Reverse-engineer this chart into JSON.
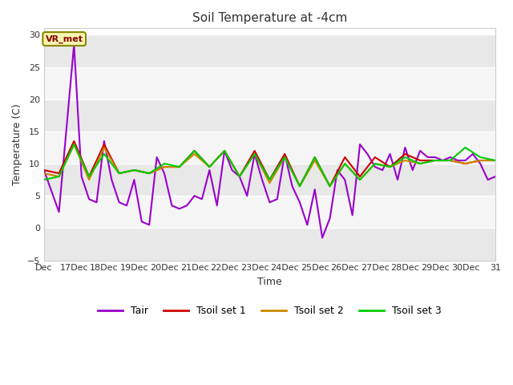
{
  "title": "Soil Temperature at -4cm",
  "xlabel": "Time",
  "ylabel": "Temperature (C)",
  "ylim": [
    -5,
    31
  ],
  "yticks": [
    -5,
    0,
    5,
    10,
    15,
    20,
    25,
    30
  ],
  "bg_color": "#ffffff",
  "plot_bg_color": "#ffffff",
  "band_colors": [
    "#e8e8e8",
    "#f5f5f5"
  ],
  "annotation_label": "VR_met",
  "annotation_bg": "#f5f5b0",
  "annotation_border": "#888800",
  "annotation_text_color": "#8b0000",
  "grid_color": "#ffffff",
  "legend_colors": {
    "Tair": "#9900cc",
    "Tsoil set 1": "#cc0000",
    "Tsoil set 2": "#cc8800",
    "Tsoil set 3": "#00cc00"
  },
  "x_labels": [
    "Dec",
    "17Dec",
    "18Dec",
    "19Dec",
    "20Dec",
    "21Dec",
    "22Dec",
    "23Dec",
    "24Dec",
    "25Dec",
    "26Dec",
    "27Dec",
    "28Dec",
    "29Dec",
    "30Dec",
    "31"
  ],
  "tair_x": [
    16,
    16.5,
    17,
    17.25,
    17.5,
    17.75,
    18,
    18.25,
    18.5,
    18.75,
    19,
    19.25,
    19.5,
    19.75,
    20,
    20.25,
    20.5,
    20.75,
    21,
    21.25,
    21.5,
    21.75,
    22,
    22.25,
    22.5,
    22.75,
    23,
    23.25,
    23.5,
    23.75,
    24,
    24.25,
    24.5,
    24.75,
    25,
    25.25,
    25.5,
    25.75,
    26,
    26.25,
    26.5,
    26.75,
    27,
    27.25,
    27.5,
    27.75,
    28,
    28.25,
    28.5,
    28.75,
    29,
    29.25,
    29.5,
    29.75,
    30,
    30.25,
    30.5,
    30.75,
    31
  ],
  "tair_y": [
    9,
    2.5,
    28.5,
    8,
    4.5,
    4,
    13.5,
    7.5,
    4,
    3.5,
    7.5,
    1,
    0.5,
    11,
    8.5,
    3.5,
    3,
    3.5,
    5,
    4.5,
    9,
    3.5,
    12,
    9,
    8,
    5,
    11.5,
    7.5,
    4,
    4.5,
    11.5,
    6.5,
    4,
    0.5,
    6,
    -1.5,
    1.5,
    9,
    7.5,
    2,
    13,
    11.5,
    9.5,
    9,
    11.5,
    7.5,
    12.5,
    9,
    12,
    11,
    11,
    10.5,
    11,
    10.5,
    10.5,
    11.5,
    10,
    7.5,
    8
  ],
  "ts1_x": [
    16,
    16.5,
    17,
    17.5,
    18,
    18.5,
    19,
    19.5,
    20,
    20.5,
    21,
    21.5,
    22,
    22.5,
    23,
    23.5,
    24,
    24.5,
    25,
    25.5,
    26,
    26.5,
    27,
    27.5,
    28,
    28.5,
    29,
    29.5,
    30,
    30.5,
    31
  ],
  "ts1_y": [
    9,
    8.5,
    13.5,
    8,
    13,
    8.5,
    9,
    8.5,
    9.5,
    9.5,
    12,
    9.5,
    12,
    8,
    12,
    7.5,
    11.5,
    6.5,
    11,
    6.5,
    11,
    8,
    11,
    9.5,
    11.5,
    10.5,
    10.5,
    10.5,
    10,
    10.5,
    10.5
  ],
  "ts2_x": [
    16,
    16.5,
    17,
    17.5,
    18,
    18.5,
    19,
    19.5,
    20,
    20.5,
    21,
    21.5,
    22,
    22.5,
    23,
    23.5,
    24,
    24.5,
    25,
    25.5,
    26,
    26.5,
    27,
    27.5,
    28,
    28.5,
    29,
    29.5,
    30,
    30.5,
    31
  ],
  "ts2_y": [
    8.5,
    8,
    13,
    7.5,
    12.5,
    8.5,
    9,
    8.5,
    9.5,
    9.5,
    11.5,
    9.5,
    12,
    8,
    11.5,
    7,
    11,
    6.5,
    10.5,
    6.5,
    10,
    7.5,
    10,
    9.5,
    10.5,
    10,
    10.5,
    10.5,
    10,
    10.5,
    10.5
  ],
  "ts3_x": [
    16,
    16.5,
    17,
    17.5,
    18,
    18.5,
    19,
    19.5,
    20,
    20.5,
    21,
    21.5,
    22,
    22.5,
    23,
    23.5,
    24,
    24.5,
    25,
    25.5,
    26,
    26.5,
    27,
    27.5,
    28,
    28.5,
    29,
    29.5,
    30,
    30.5,
    31
  ],
  "ts3_y": [
    7.5,
    8,
    13,
    8,
    11.5,
    8.5,
    9,
    8.5,
    10,
    9.5,
    12,
    9.5,
    12,
    8,
    11.5,
    7.5,
    11,
    6.5,
    11,
    6.5,
    10,
    7.5,
    10,
    9.5,
    11,
    10,
    10.5,
    10.5,
    12.5,
    11,
    10.5
  ]
}
